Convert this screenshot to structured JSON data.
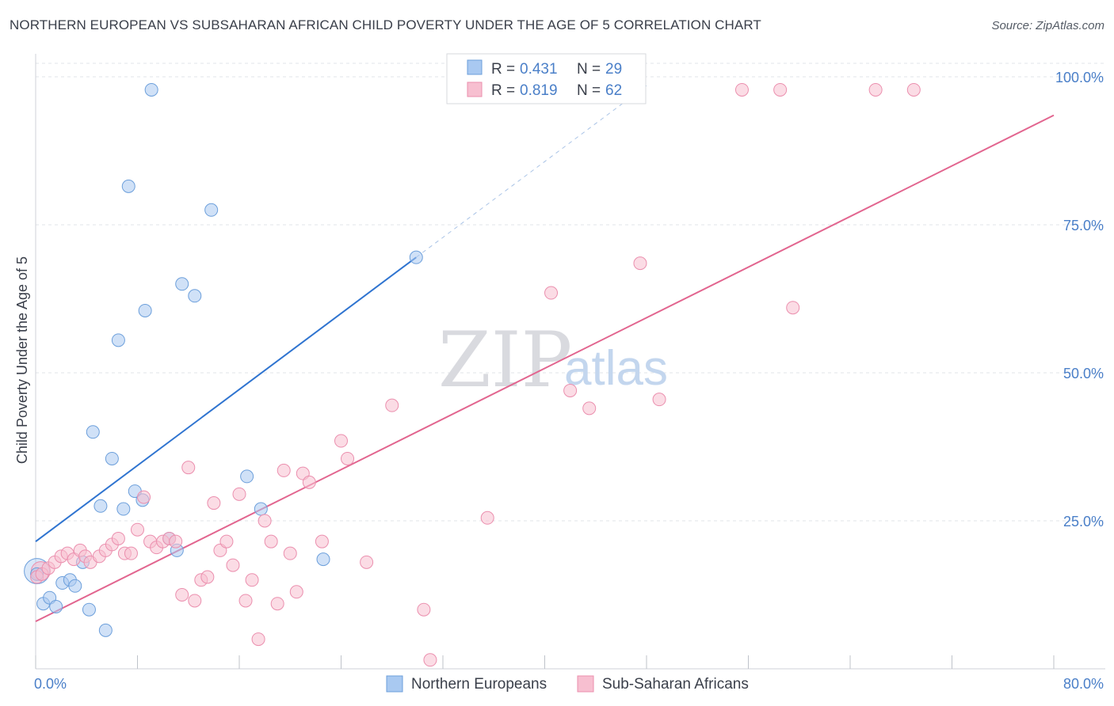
{
  "header": {
    "title": "NORTHERN EUROPEAN VS SUBSAHARAN AFRICAN CHILD POVERTY UNDER THE AGE OF 5 CORRELATION CHART",
    "source": "Source: ZipAtlas.com"
  },
  "watermark": {
    "zip": "ZIP",
    "atlas": "atlas"
  },
  "legend": {
    "r_label": "R = ",
    "n_label": "N = ",
    "rows": [
      {
        "r": "0.431",
        "n": "29",
        "color": "#9ec2ee"
      },
      {
        "r": "0.819",
        "n": "62",
        "color": "#f6b4c8"
      }
    ]
  },
  "bottom_legend": [
    {
      "label": "Northern Europeans",
      "color": "#9ec2ee"
    },
    {
      "label": "Sub-Saharan Africans",
      "color": "#f6b4c8"
    }
  ],
  "colors": {
    "blue_fill": "#a9c9f1",
    "blue_stroke": "#6c9fdb",
    "blue_line": "#2f74d0",
    "pink_fill": "#f7bfd0",
    "pink_stroke": "#eb8fae",
    "pink_line": "#e2658f",
    "grid": "#e2e4e8",
    "axis_text": "#4a7fc8"
  },
  "chart_data": {
    "type": "scatter",
    "title": "NORTHERN EUROPEAN VS SUBSAHARAN AFRICAN CHILD POVERTY UNDER THE AGE OF 5 CORRELATION CHART",
    "xlabel": "",
    "ylabel": "Child Poverty Under the Age of 5",
    "xlim": [
      0,
      80
    ],
    "ylim": [
      0,
      100
    ],
    "x_tick_labels": [
      "0.0%",
      "80.0%"
    ],
    "y_tick_labels": [
      "25.0%",
      "50.0%",
      "75.0%",
      "100.0%"
    ],
    "y_ticks": [
      25,
      50,
      75,
      100
    ],
    "x_minor_ticks": [
      0,
      8,
      16,
      24,
      32,
      40,
      48,
      56,
      64,
      72,
      80
    ],
    "grid": true,
    "legend_position": "top-center",
    "series": [
      {
        "name": "Northern Europeans",
        "color": "#a9c9f1",
        "points": [
          [
            0.1,
            16.0
          ],
          [
            0.6,
            11.0
          ],
          [
            1.1,
            12.0
          ],
          [
            1.6,
            10.5
          ],
          [
            2.1,
            14.5
          ],
          [
            2.7,
            15.0
          ],
          [
            3.1,
            14.0
          ],
          [
            3.7,
            18.0
          ],
          [
            4.2,
            10.0
          ],
          [
            4.5,
            40.0
          ],
          [
            5.1,
            27.5
          ],
          [
            5.5,
            6.5
          ],
          [
            6.0,
            35.5
          ],
          [
            6.5,
            55.5
          ],
          [
            6.9,
            27.0
          ],
          [
            7.3,
            81.5
          ],
          [
            7.8,
            30.0
          ],
          [
            8.4,
            28.5
          ],
          [
            8.6,
            60.5
          ],
          [
            9.1,
            97.8
          ],
          [
            10.5,
            22.0
          ],
          [
            11.1,
            20.0
          ],
          [
            11.5,
            65.0
          ],
          [
            12.5,
            63.0
          ],
          [
            13.8,
            77.5
          ],
          [
            16.6,
            32.5
          ],
          [
            17.7,
            27.0
          ],
          [
            22.6,
            18.5
          ],
          [
            29.9,
            69.5
          ]
        ],
        "trend": {
          "x": [
            0,
            29.9
          ],
          "y": [
            21.5,
            69.5
          ],
          "dashed_extension": {
            "x": [
              29.9,
              48
            ],
            "y": [
              69.5,
              98.5
            ]
          }
        }
      },
      {
        "name": "Sub-Saharan Africans",
        "color": "#f7bfd0",
        "points": [
          [
            0.1,
            15.5
          ],
          [
            0.5,
            16.0
          ],
          [
            1.0,
            17.0
          ],
          [
            1.5,
            18.0
          ],
          [
            2.0,
            19.0
          ],
          [
            2.5,
            19.5
          ],
          [
            3.0,
            18.5
          ],
          [
            3.5,
            20.0
          ],
          [
            3.9,
            19.0
          ],
          [
            4.3,
            18.0
          ],
          [
            5.0,
            19.0
          ],
          [
            5.5,
            20.0
          ],
          [
            6.0,
            21.0
          ],
          [
            6.5,
            22.0
          ],
          [
            7.0,
            19.5
          ],
          [
            7.5,
            19.5
          ],
          [
            8.0,
            23.5
          ],
          [
            8.5,
            29.0
          ],
          [
            9.0,
            21.5
          ],
          [
            9.5,
            20.5
          ],
          [
            10.0,
            21.5
          ],
          [
            10.5,
            22.0
          ],
          [
            11.0,
            21.5
          ],
          [
            11.5,
            12.5
          ],
          [
            12.0,
            34.0
          ],
          [
            12.5,
            11.5
          ],
          [
            13.0,
            15.0
          ],
          [
            13.5,
            15.5
          ],
          [
            14.0,
            28.0
          ],
          [
            14.5,
            20.0
          ],
          [
            15.0,
            21.5
          ],
          [
            15.5,
            17.5
          ],
          [
            16.0,
            29.5
          ],
          [
            16.5,
            11.5
          ],
          [
            17.0,
            15.0
          ],
          [
            17.5,
            5.0
          ],
          [
            18.0,
            25.0
          ],
          [
            18.5,
            21.5
          ],
          [
            19.0,
            11.0
          ],
          [
            19.5,
            33.5
          ],
          [
            20.0,
            19.5
          ],
          [
            20.5,
            13.0
          ],
          [
            21.0,
            33.0
          ],
          [
            21.5,
            31.5
          ],
          [
            22.5,
            21.5
          ],
          [
            24.0,
            38.5
          ],
          [
            24.5,
            35.5
          ],
          [
            26.0,
            18.0
          ],
          [
            28.0,
            44.5
          ],
          [
            30.5,
            10.0
          ],
          [
            31.0,
            1.5
          ],
          [
            35.5,
            25.5
          ],
          [
            40.5,
            63.5
          ],
          [
            42.0,
            47.0
          ],
          [
            43.5,
            44.0
          ],
          [
            47.5,
            68.5
          ],
          [
            49.0,
            45.5
          ],
          [
            55.5,
            97.8
          ],
          [
            58.5,
            97.8
          ],
          [
            59.5,
            61.0
          ],
          [
            66.0,
            97.8
          ],
          [
            69.0,
            97.8
          ]
        ],
        "trend": {
          "x": [
            0,
            80
          ],
          "y": [
            8.0,
            93.5
          ]
        }
      }
    ]
  }
}
